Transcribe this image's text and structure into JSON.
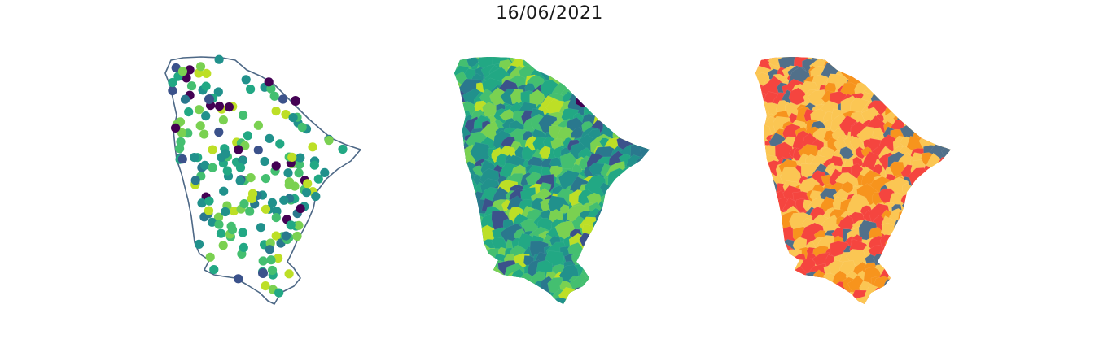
{
  "figure": {
    "title": "16/06/2021"
  },
  "panels": [
    {
      "name": "station-points-map",
      "type": "point-map",
      "colormap": "viridis"
    },
    {
      "name": "municipal-choropleth-map",
      "type": "choropleth",
      "colormap": "viridis"
    },
    {
      "name": "municipal-class-map",
      "type": "categorical-choropleth",
      "colors": [
        "#fbc653",
        "#f5453f",
        "#f7941d",
        "#51708a"
      ]
    }
  ],
  "colors": {
    "outline": "#4d6886",
    "viridis": [
      "#440154",
      "#3b528b",
      "#2a788e",
      "#21918c",
      "#22a884",
      "#44bf70",
      "#7ad151",
      "#bddf26",
      "#fde725"
    ]
  }
}
